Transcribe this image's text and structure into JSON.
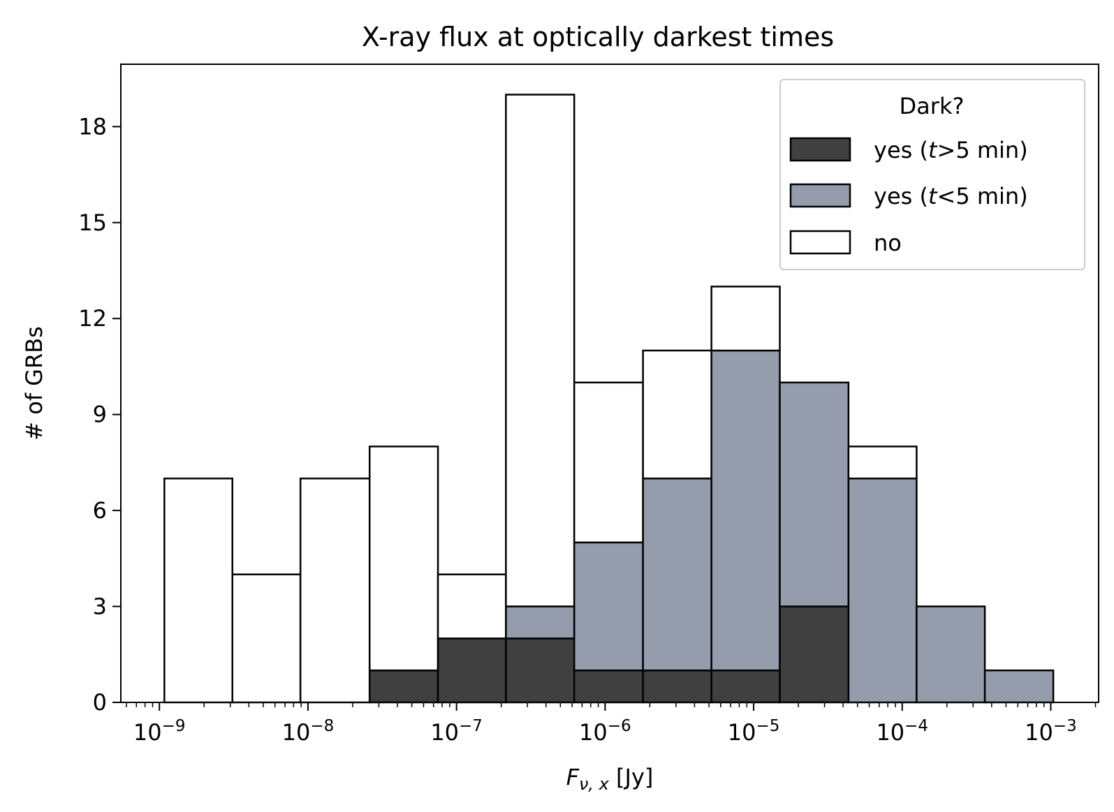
{
  "chart_data": {
    "type": "histogram",
    "title": "X-ray flux at optically darkest times",
    "xlabel_main": "F",
    "xlabel_sub": "ν, x",
    "xlabel_unit": " [Jy]",
    "ylabel": "# of GRBs",
    "xscale": "log",
    "xlim": [
      5.5e-10,
      0.0021
    ],
    "ylim": [
      0,
      19.95
    ],
    "bin_edges": [
      1.08e-09,
      3.1e-09,
      8.9e-09,
      2.6e-08,
      7.5e-08,
      2.15e-07,
      6.2e-07,
      1.8e-06,
      5.2e-06,
      1.5e-05,
      4.35e-05,
      0.000125,
      0.00036,
      0.00104
    ],
    "series": [
      {
        "name": "yes (t>5 min)",
        "color": "#404040",
        "counts": [
          0,
          0,
          0,
          1,
          2,
          2,
          1,
          1,
          1,
          3,
          0,
          0,
          0
        ]
      },
      {
        "name": "yes (t<5 min)",
        "color": "#959cab",
        "counts": [
          0,
          0,
          0,
          0,
          0,
          1,
          4,
          6,
          10,
          7,
          7,
          3,
          1
        ]
      },
      {
        "name": "no",
        "color": "#ffffff",
        "counts": [
          7,
          4,
          7,
          7,
          2,
          16,
          5,
          4,
          2,
          0,
          1,
          0,
          0
        ]
      }
    ],
    "stacked": true,
    "yticks": [
      0,
      3,
      6,
      9,
      12,
      15,
      18
    ],
    "xtick_exponents": [
      -9,
      -8,
      -7,
      -6,
      -5,
      -4,
      -3
    ],
    "legend": {
      "title": "Dark?",
      "placement": "top-right",
      "entries": [
        {
          "prefix": "yes (",
          "var": "t",
          "suffix": ">5 min)"
        },
        {
          "prefix": "yes (",
          "var": "t",
          "suffix": "<5 min)"
        },
        {
          "prefix": "no",
          "var": "",
          "suffix": ""
        }
      ]
    }
  }
}
